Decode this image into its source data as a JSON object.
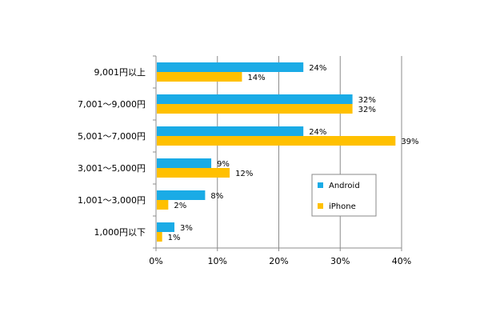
{
  "chart_data": {
    "type": "bar",
    "orientation": "horizontal",
    "categories": [
      "9,001円以上",
      "7,001～9,000円",
      "5,001～7,000円",
      "3,001～5,000円",
      "1,001～3,000円",
      "1,000円以下"
    ],
    "series": [
      {
        "name": "Android",
        "values": [
          24,
          32,
          24,
          9,
          8,
          3
        ],
        "labels": [
          "24%",
          "32%",
          "24%",
          "9%",
          "8%",
          "3%"
        ],
        "color": "#1aabe6"
      },
      {
        "name": "iPhone",
        "values": [
          14,
          32,
          39,
          12,
          2,
          1
        ],
        "labels": [
          "14%",
          "32%",
          "39%",
          "12%",
          "2%",
          "1%"
        ],
        "color": "#ffc000"
      }
    ],
    "xticks": [
      "0%",
      "10%",
      "20%",
      "30%",
      "40%"
    ],
    "xlim": [
      0,
      40
    ],
    "title": "",
    "xlabel": "",
    "ylabel": "",
    "grid": "vertical",
    "legend_position": "right"
  }
}
